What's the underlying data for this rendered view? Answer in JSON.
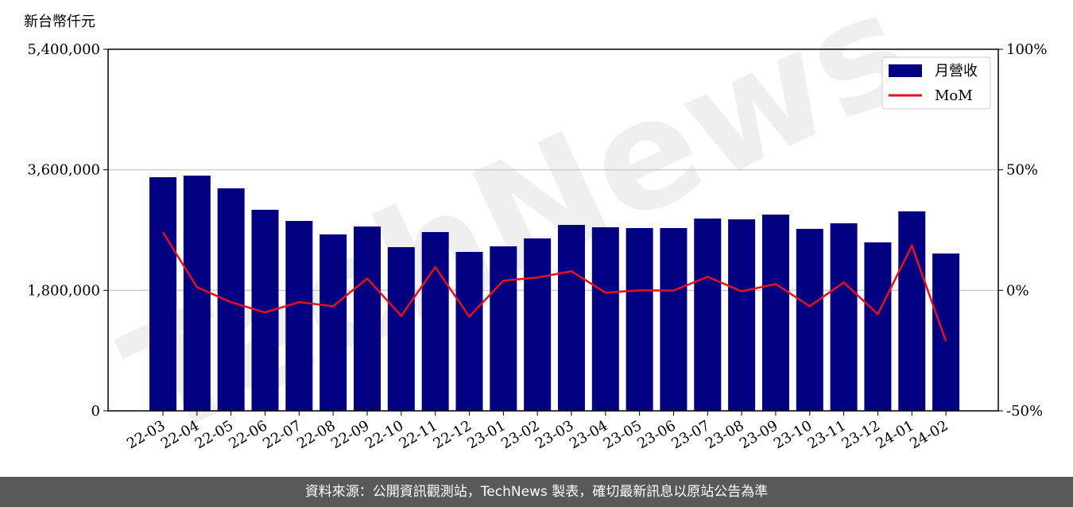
{
  "chart_data": {
    "type": "bar_line",
    "y_label": "新台幣仟元",
    "watermark": "TechNews",
    "categories": [
      "22-03",
      "22-04",
      "22-05",
      "22-06",
      "22-07",
      "22-08",
      "22-09",
      "22-10",
      "22-11",
      "22-12",
      "23-01",
      "23-02",
      "23-03",
      "23-04",
      "23-05",
      "23-06",
      "23-07",
      "23-08",
      "23-09",
      "23-10",
      "23-11",
      "23-12",
      "24-01",
      "24-02"
    ],
    "series": [
      {
        "name": "月營收",
        "type": "bar",
        "color": "#000080",
        "values": [
          3489000,
          3513000,
          3323000,
          3003000,
          2836000,
          2635000,
          2753000,
          2445000,
          2670000,
          2374000,
          2457000,
          2575000,
          2777000,
          2742000,
          2730000,
          2730000,
          2872000,
          2860000,
          2931000,
          2718000,
          2801000,
          2516000,
          2979000,
          2350000
        ]
      },
      {
        "name": "MoM",
        "type": "line",
        "axis": "y2",
        "color": "#e8101a",
        "values": [
          24.1,
          1.3,
          -4.9,
          -9.2,
          -4.9,
          -6.6,
          4.9,
          -10.6,
          9.6,
          -10.9,
          4.0,
          5.3,
          7.9,
          -1.0,
          0,
          -0.1,
          5.6,
          -0.4,
          2.6,
          -6.6,
          3.3,
          -9.9,
          18.5,
          -21.1
        ]
      }
    ],
    "ylim": [
      0,
      5400000
    ],
    "yticks": [
      0,
      {
        "value": 1800000,
        "label": "1,800,000"
      },
      {
        "value": 3600000,
        "label": "3,600,000"
      },
      {
        "value": 5400000,
        "label": "5,400,000"
      }
    ],
    "y2lim": [
      -50,
      100
    ],
    "y2ticks": [
      {
        "value": -50,
        "label": "-50%"
      },
      {
        "value": 0,
        "label": "0%"
      },
      {
        "value": 50,
        "label": "50%"
      },
      {
        "value": 100,
        "label": "100%"
      }
    ],
    "grid": true,
    "legend": "upper right",
    "source": "資料來源：公開資訊觀測站，TechNews 製表，確切最新訊息以原站公告為準"
  }
}
